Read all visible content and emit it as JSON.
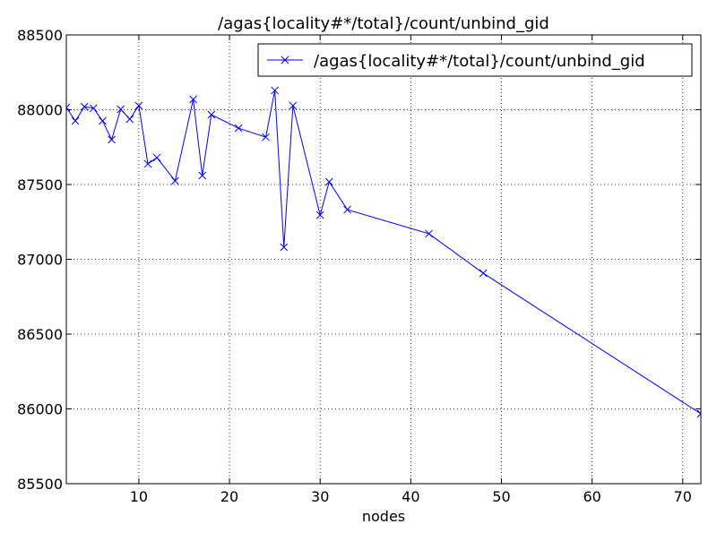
{
  "chart_data": {
    "type": "line",
    "title": "/agas{locality#*/total}/count/unbind_gid",
    "x_label": "nodes",
    "x": [
      2,
      3,
      4,
      5,
      6,
      7,
      8,
      9,
      10,
      11,
      12,
      14,
      16,
      17,
      18,
      21,
      24,
      25,
      26,
      27,
      30,
      31,
      33,
      42,
      48,
      72
    ],
    "series": [
      {
        "name": "/agas{locality#*/total}/count/unbind_gid",
        "color": "#0000ff",
        "values": [
          88015,
          87925,
          88020,
          88010,
          87925,
          87800,
          88003,
          87937,
          88027,
          87638,
          87680,
          87524,
          88069,
          87560,
          87967,
          87877,
          87817,
          88129,
          87081,
          88027,
          87296,
          87518,
          87332,
          87171,
          86907,
          85967
        ]
      }
    ],
    "xlim": [
      2,
      72
    ],
    "xticks": [
      10,
      20,
      30,
      40,
      50,
      60,
      70
    ],
    "ylim": [
      85500,
      88500
    ],
    "yticks": [
      85500,
      86000,
      86500,
      87000,
      87500,
      88000,
      88500
    ],
    "grid": true,
    "legend": "upper right"
  }
}
